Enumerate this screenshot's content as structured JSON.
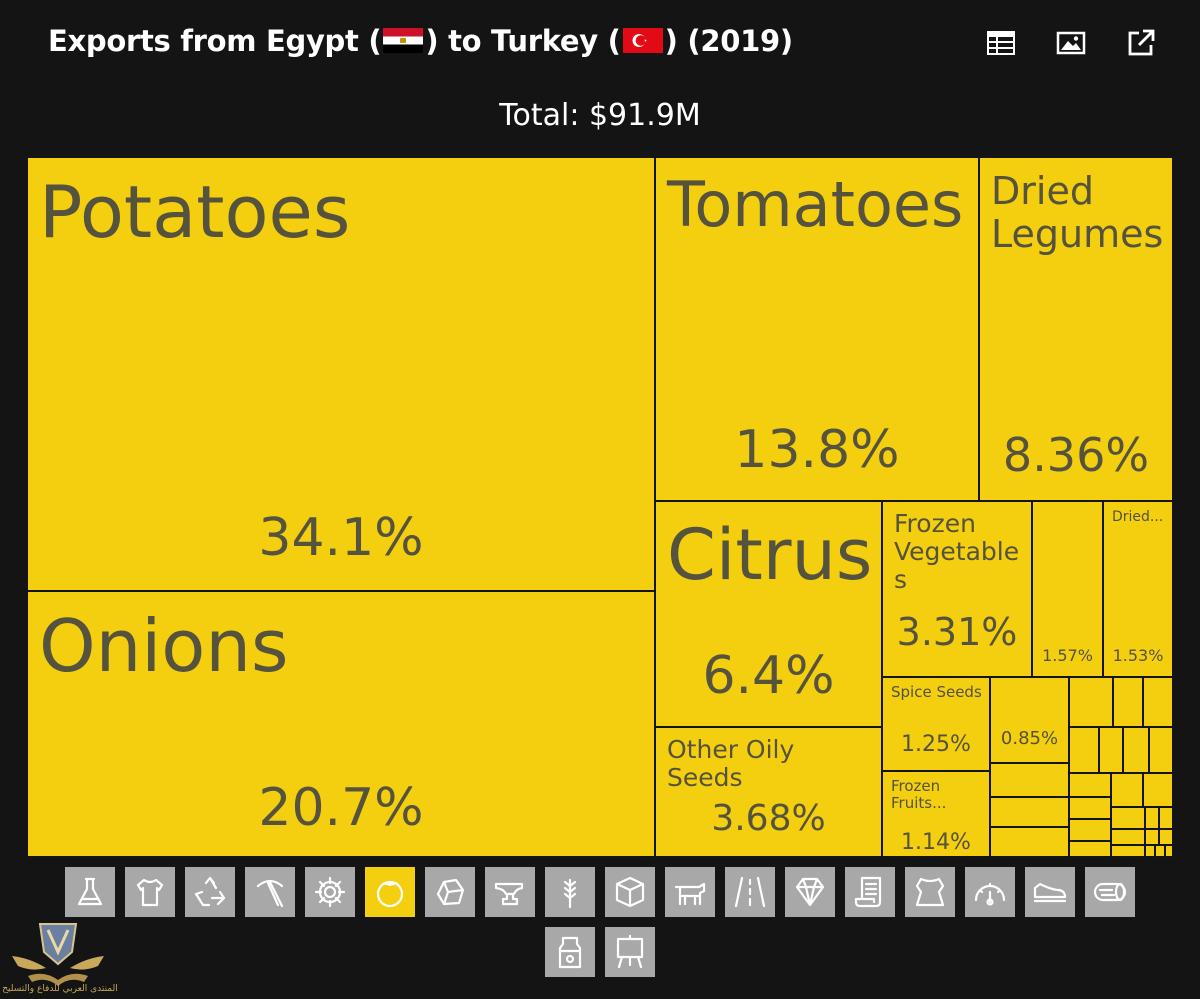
{
  "header": {
    "title_prefix": "Exports from Egypt (",
    "title_mid": ") to Turkey (",
    "title_suffix": ") (2019)",
    "flag_origin": "egypt-flag",
    "flag_dest": "turkey-flag",
    "tools": [
      {
        "name": "table-view-button",
        "icon": "table-icon"
      },
      {
        "name": "image-download-button",
        "icon": "image-icon"
      },
      {
        "name": "open-external-button",
        "icon": "external-link-icon"
      }
    ]
  },
  "total": "Total: $91.9M",
  "colors": {
    "tile": "#f4cf10",
    "text": "#55523e",
    "background": "#141414",
    "category": "#a8a8a8"
  },
  "chart_data": {
    "type": "treemap",
    "title": "Exports from Egypt to Turkey (2019)",
    "total": "$91.9M",
    "items": [
      {
        "name": "Potatoes",
        "share": 34.1,
        "label": "Potatoes",
        "value_label": "34.1%"
      },
      {
        "name": "Onions",
        "share": 20.7,
        "label": "Onions",
        "value_label": "20.7%"
      },
      {
        "name": "Tomatoes",
        "share": 13.8,
        "label": "Tomatoes",
        "value_label": "13.8%"
      },
      {
        "name": "Dried Legumes",
        "share": 8.36,
        "label": "Dried Legumes",
        "value_label": "8.36%"
      },
      {
        "name": "Citrus",
        "share": 6.4,
        "label": "Citrus",
        "value_label": "6.4%"
      },
      {
        "name": "Other Oily Seeds",
        "share": 3.68,
        "label": "Other Oily Seeds",
        "value_label": "3.68%"
      },
      {
        "name": "Frozen Vegetables",
        "share": 3.31,
        "label": "Frozen Vegetables",
        "value_label": "3.31%"
      },
      {
        "name": "",
        "share": 1.57,
        "label": "",
        "value_label": "1.57%"
      },
      {
        "name": "Dried...",
        "share": 1.53,
        "label": "Dried...",
        "value_label": "1.53%"
      },
      {
        "name": "Spice Seeds",
        "share": 1.25,
        "label": "Spice Seeds",
        "value_label": "1.25%"
      },
      {
        "name": "Frozen Fruits...",
        "share": 1.14,
        "label": "Frozen Fruits...",
        "value_label": "1.14%"
      },
      {
        "name": "",
        "share": 0.85,
        "label": "",
        "value_label": "0.85%"
      }
    ]
  },
  "categories": [
    {
      "name": "chemicals-category",
      "icon": "flask-icon",
      "active": false
    },
    {
      "name": "textiles-category",
      "icon": "tshirt-icon",
      "active": false
    },
    {
      "name": "plastics-category",
      "icon": "recycle-icon",
      "active": false
    },
    {
      "name": "mineral-products-category",
      "icon": "pickaxe-icon",
      "active": false
    },
    {
      "name": "machines-category",
      "icon": "gear-icon",
      "active": false
    },
    {
      "name": "vegetable-products-category",
      "icon": "tomato-icon",
      "active": true
    },
    {
      "name": "stone-category",
      "icon": "rock-icon",
      "active": false
    },
    {
      "name": "metals-category",
      "icon": "anvil-icon",
      "active": false
    },
    {
      "name": "foodstuffs-category",
      "icon": "wheat-icon",
      "active": false
    },
    {
      "name": "paper-goods-category",
      "icon": "box-icon",
      "active": false
    },
    {
      "name": "animal-products-category",
      "icon": "cow-icon",
      "active": false
    },
    {
      "name": "transportation-category",
      "icon": "road-icon",
      "active": false
    },
    {
      "name": "precious-metals-category",
      "icon": "diamond-icon",
      "active": false
    },
    {
      "name": "paper-category",
      "icon": "scroll-icon",
      "active": false
    },
    {
      "name": "animal-hides-category",
      "icon": "hide-icon",
      "active": false
    },
    {
      "name": "instruments-category",
      "icon": "gauge-icon",
      "active": false
    },
    {
      "name": "footwear-category",
      "icon": "shoe-icon",
      "active": false
    },
    {
      "name": "wood-products-category",
      "icon": "log-icon",
      "active": false
    },
    {
      "name": "animal-vegetable-fats-category",
      "icon": "bottle-icon",
      "active": false
    },
    {
      "name": "arts-category",
      "icon": "easel-icon",
      "active": false
    }
  ],
  "watermark": {
    "text": "المنتدى العربي للدفاع والتسليح",
    "icon": "shield-emblem-icon"
  }
}
